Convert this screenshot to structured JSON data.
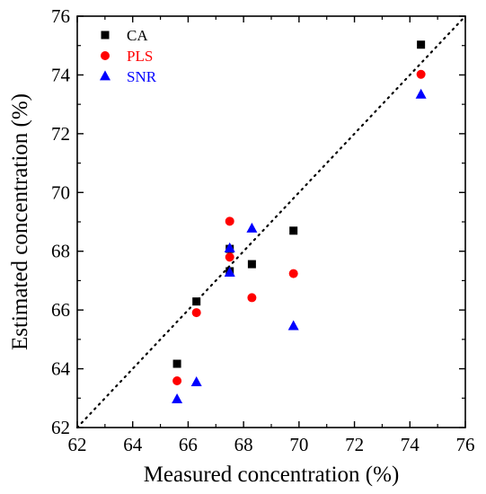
{
  "chart_data": {
    "type": "scatter",
    "title": "",
    "xlabel": "Measured concentration (%)",
    "ylabel": "Estimated concentration (%)",
    "xlim": [
      62,
      76
    ],
    "ylim": [
      62,
      76
    ],
    "xticks": [
      "62",
      "64",
      "66",
      "68",
      "70",
      "72",
      "74",
      "76"
    ],
    "yticks": [
      "62",
      "64",
      "66",
      "68",
      "70",
      "72",
      "74",
      "76"
    ],
    "grid": false,
    "legend_position": "top-left",
    "reference_line": {
      "style": "dotted",
      "from": [
        62,
        62
      ],
      "to": [
        76,
        76
      ]
    },
    "series": [
      {
        "name": "CA",
        "marker": "square",
        "color": "#000000",
        "points": [
          [
            65.6,
            64.17
          ],
          [
            66.3,
            66.29
          ],
          [
            67.5,
            67.32
          ],
          [
            67.5,
            68.08
          ],
          [
            68.3,
            67.56
          ],
          [
            69.8,
            68.7
          ],
          [
            74.4,
            75.03
          ]
        ]
      },
      {
        "name": "PLS",
        "marker": "circle",
        "color": "#ff0000",
        "points": [
          [
            65.6,
            63.59
          ],
          [
            66.3,
            65.91
          ],
          [
            67.5,
            67.8
          ],
          [
            67.5,
            69.02
          ],
          [
            68.3,
            66.42
          ],
          [
            69.8,
            67.24
          ],
          [
            74.4,
            74.02
          ]
        ]
      },
      {
        "name": "SNR",
        "marker": "triangle",
        "color": "#0000ff",
        "points": [
          [
            65.6,
            62.96
          ],
          [
            66.3,
            63.54
          ],
          [
            67.5,
            67.27
          ],
          [
            67.5,
            68.1
          ],
          [
            68.3,
            68.77
          ],
          [
            69.8,
            65.45
          ],
          [
            74.4,
            73.33
          ]
        ]
      }
    ]
  }
}
